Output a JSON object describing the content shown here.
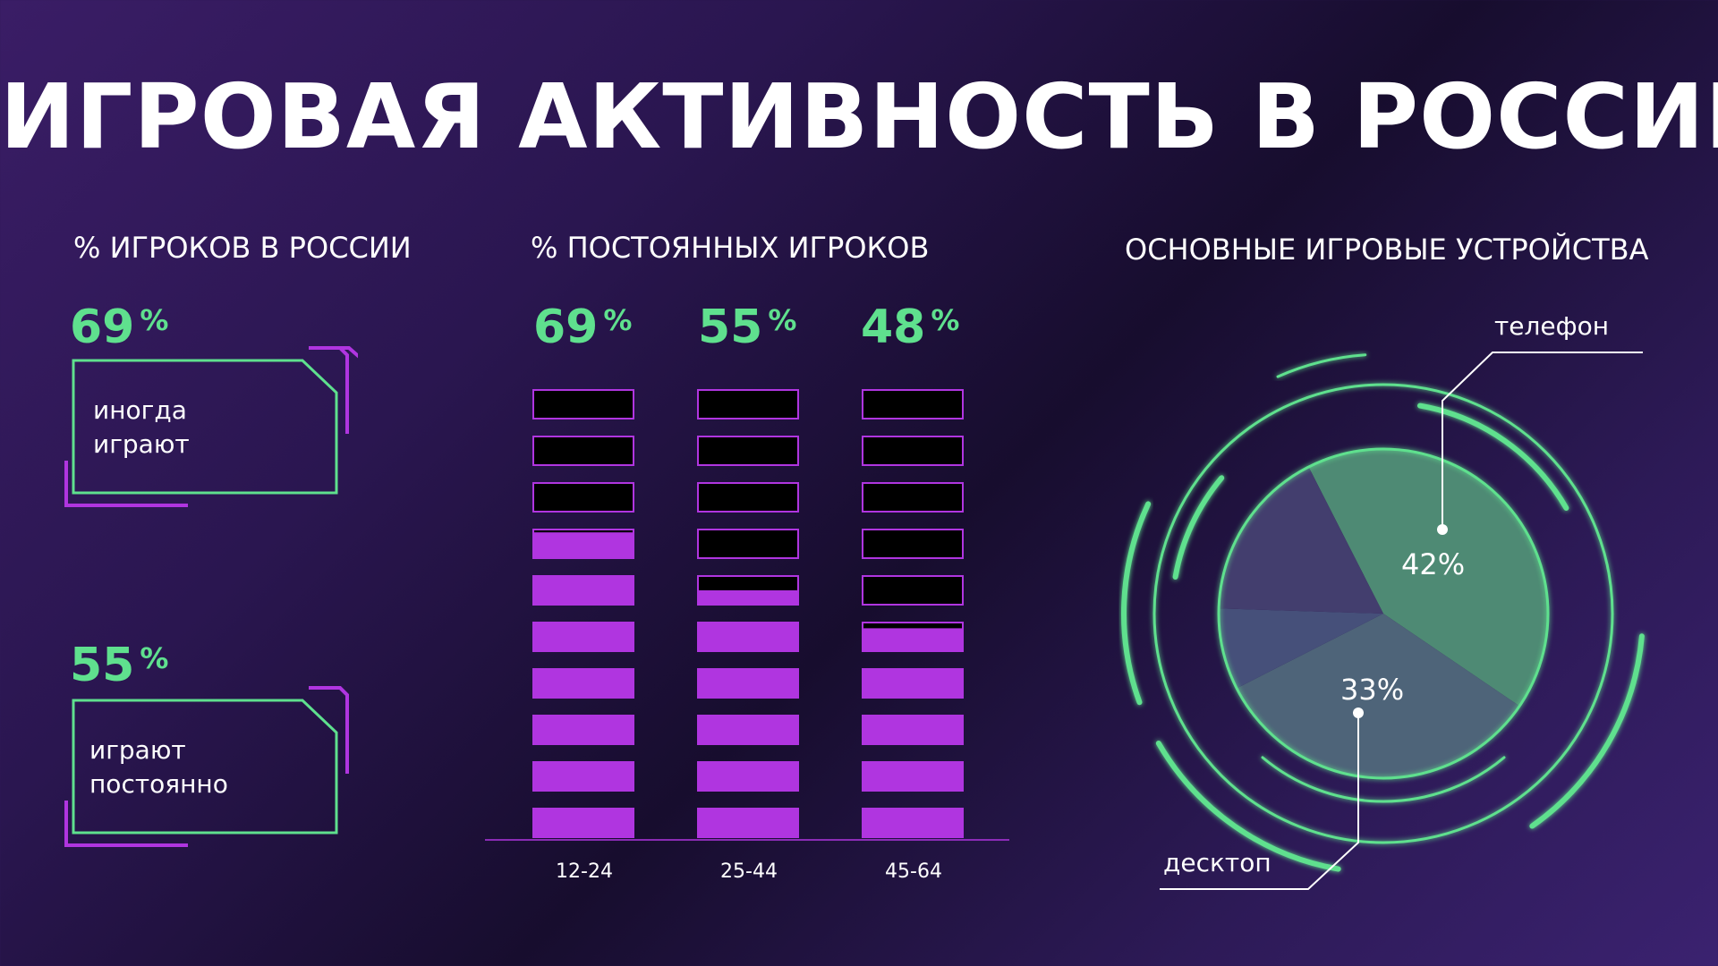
{
  "title": "ИГРОВАЯ АКТИВНОСТЬ В РОССИИ",
  "colors": {
    "accent_green": "#5fe08e",
    "accent_purple": "#b035e0",
    "empty_segment": "#000000"
  },
  "players_section": {
    "heading": "% ИГРОКОВ В РОССИИ",
    "stats": [
      {
        "value": "69",
        "unit": "%",
        "label": "иногда\nиграют"
      },
      {
        "value": "55",
        "unit": "%",
        "label": "играют\nпостоянно"
      }
    ]
  },
  "regular_section": {
    "heading": "% ПОСТОЯННЫХ ИГРОКОВ",
    "value_labels": [
      "69",
      "55",
      "48"
    ],
    "unit": "%"
  },
  "devices_section": {
    "heading": "ОСНОВНЫЕ ИГРОВЫЕ УСТРОЙСТВА",
    "callouts": [
      "телефон",
      "десктоп"
    ]
  },
  "chart_data": [
    {
      "type": "bar",
      "title": "% ПОСТОЯННЫХ ИГРОКОВ",
      "categories": [
        "12-24",
        "25-44",
        "45-64"
      ],
      "values": [
        69,
        55,
        48
      ],
      "ylim": [
        0,
        100
      ],
      "segments": 10,
      "data_labels": [
        "69 %",
        "55 %",
        "48 %"
      ]
    },
    {
      "type": "pie",
      "title": "ОСНОВНЫЕ ИГРОВЫЕ УСТРОЙСТВА",
      "slices": [
        {
          "name": "телефон",
          "value": 42,
          "label": "42%",
          "color": "#4e8a74"
        },
        {
          "name": "десктоп",
          "value": 33,
          "label": "33%",
          "color": "#4e6479"
        },
        {
          "name": "",
          "value": 8,
          "label": "",
          "color": "#46507a"
        },
        {
          "name": "",
          "value": 17,
          "label": "",
          "color": "#433e6e"
        }
      ]
    }
  ]
}
